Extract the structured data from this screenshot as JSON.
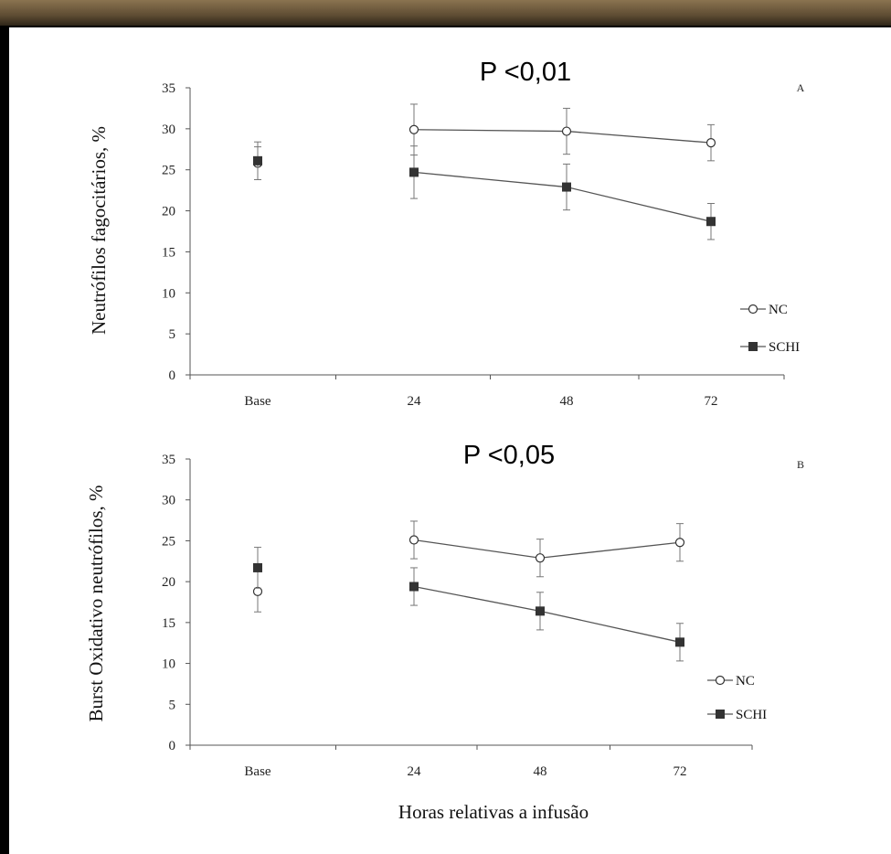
{
  "chart_data": [
    {
      "type": "line",
      "panel": "A",
      "annotation": "P <0,01",
      "ylabel": "Neutrófilos  fagocitários, %",
      "xlabel": "",
      "categories": [
        "Base",
        "24",
        "48",
        "72"
      ],
      "ylim": [
        0,
        35
      ],
      "yticks": [
        0,
        5,
        10,
        15,
        20,
        25,
        30,
        35
      ],
      "legend_position": "right",
      "grid": false,
      "series": [
        {
          "name": "NC",
          "marker": "open-circle",
          "values": [
            25.8,
            29.9,
            29.7,
            28.3
          ],
          "errors": [
            2.0,
            3.1,
            2.8,
            2.2
          ],
          "connect_from": 1
        },
        {
          "name": "SCHI",
          "marker": "filled-square",
          "values": [
            26.1,
            24.7,
            22.9,
            18.7
          ],
          "errors": [
            2.3,
            3.2,
            2.8,
            2.2
          ],
          "connect_from": 1
        }
      ]
    },
    {
      "type": "line",
      "panel": "B",
      "annotation": "P <0,05",
      "ylabel": "Burst Oxidativo  neutrófilos, %",
      "xlabel": "Horas relativas a infusão",
      "categories": [
        "Base",
        "24",
        "48",
        "72"
      ],
      "ylim": [
        0,
        35
      ],
      "yticks": [
        0,
        5,
        10,
        15,
        20,
        25,
        30,
        35
      ],
      "legend_position": "right",
      "grid": false,
      "series": [
        {
          "name": "NC",
          "marker": "open-circle",
          "values": [
            18.8,
            25.1,
            22.9,
            24.8
          ],
          "errors": [
            2.5,
            2.3,
            2.3,
            2.3
          ],
          "connect_from": 1
        },
        {
          "name": "SCHI",
          "marker": "filled-square",
          "values": [
            21.7,
            19.4,
            16.4,
            12.6
          ],
          "errors": [
            2.5,
            2.3,
            2.3,
            2.3
          ],
          "connect_from": 1
        }
      ]
    }
  ]
}
